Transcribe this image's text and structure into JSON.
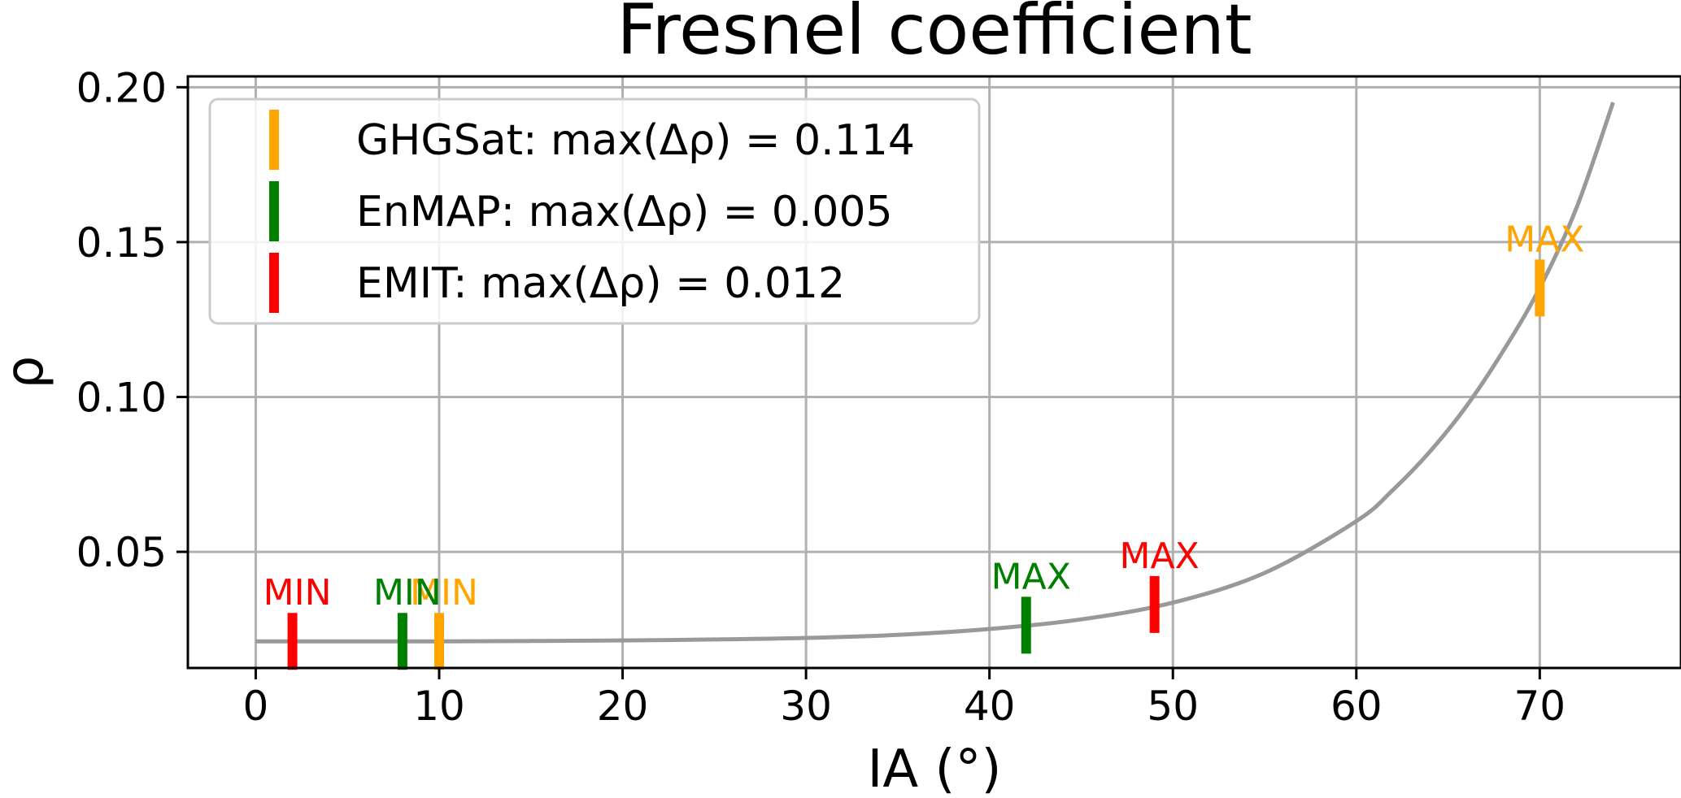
{
  "chart_data": {
    "type": "line",
    "title": "Fresnel coefficient",
    "xlabel": "IA (°)",
    "ylabel": "ρ",
    "xlim": [
      -3.7,
      77.7
    ],
    "ylim": [
      0.0125,
      0.2035
    ],
    "xticks": [
      0,
      10,
      20,
      30,
      40,
      50,
      60,
      70
    ],
    "xtick_labels": [
      "0",
      "10",
      "20",
      "30",
      "40",
      "50",
      "60",
      "70"
    ],
    "yticks": [
      0.05,
      0.1,
      0.15,
      0.2
    ],
    "ytick_labels": [
      "0.05",
      "0.10",
      "0.15",
      "0.20"
    ],
    "grid": true,
    "legend_position": "top-left",
    "curve": {
      "color": "#999999",
      "x": [
        0,
        5,
        10,
        15,
        20,
        25,
        30,
        35,
        40,
        45,
        50,
        55,
        60,
        62,
        64,
        66,
        68,
        70,
        72,
        74
      ],
      "y": [
        0.0211,
        0.0211,
        0.0211,
        0.0212,
        0.0214,
        0.0217,
        0.0222,
        0.0232,
        0.0251,
        0.0282,
        0.0336,
        0.0432,
        0.0599,
        0.07,
        0.0823,
        0.097,
        0.1148,
        0.1352,
        0.161,
        0.1951
      ]
    },
    "series": [
      {
        "name": "GHGSat",
        "legend_label": "GHGSat: max(Δρ) = 0.114",
        "color": "#FFA500",
        "min": {
          "label": "MIN",
          "x": 10,
          "y": 0.0211
        },
        "max": {
          "label": "MAX",
          "x": 70,
          "y": 0.1352
        }
      },
      {
        "name": "EnMAP",
        "legend_label": "EnMAP: max(Δρ) = 0.005",
        "color": "#008000",
        "min": {
          "label": "MIN",
          "x": 8,
          "y": 0.0211
        },
        "max": {
          "label": "MAX",
          "x": 42,
          "y": 0.0263
        }
      },
      {
        "name": "EMIT",
        "legend_label": "EMIT: max(Δρ) = 0.012",
        "color": "#FF0000",
        "min": {
          "label": "MIN",
          "x": 2,
          "y": 0.0211
        },
        "max": {
          "label": "MAX",
          "x": 49,
          "y": 0.033
        }
      }
    ]
  }
}
